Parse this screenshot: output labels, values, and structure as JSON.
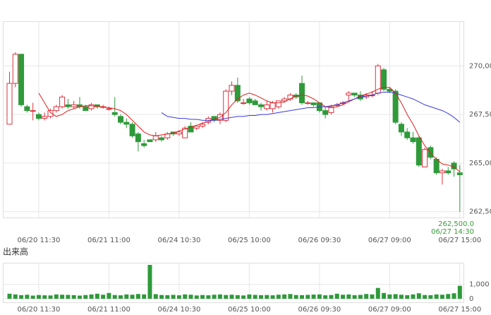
{
  "chart_data": [
    {
      "type": "candlestick",
      "categories": [
        null,
        null,
        null,
        null,
        null,
        "06/20 11:30",
        null,
        null,
        null,
        null,
        null,
        null,
        null,
        null,
        null,
        null,
        null,
        "06/21 11:00",
        null,
        null,
        null,
        null,
        null,
        null,
        null,
        null,
        null,
        null,
        null,
        "06/24 10:30",
        null,
        null,
        null,
        null,
        null,
        null,
        null,
        null,
        null,
        null,
        null,
        "06/25 10:00",
        null,
        null,
        null,
        null,
        null,
        null,
        null,
        null,
        null,
        null,
        null,
        "06/26 09:30",
        null,
        null,
        null,
        null,
        null,
        null,
        null,
        null,
        null,
        null,
        null,
        "06/27 09:00",
        null,
        null,
        null,
        null,
        null,
        null,
        null,
        null,
        null,
        null,
        null,
        "06/27 15:00"
      ],
      "open": [
        267.0,
        269.1,
        270.6,
        267.9,
        267.7,
        267.5,
        267.3,
        267.4,
        267.7,
        267.9,
        268.0,
        267.9,
        268.0,
        267.9,
        267.8,
        268.0,
        267.9,
        267.8,
        267.6,
        267.4,
        267.1,
        267.0,
        266.5,
        266.0,
        266.2,
        266.2,
        266.3,
        266.3,
        266.6,
        266.5,
        266.3,
        266.9,
        266.8,
        266.9,
        267.1,
        267.4,
        267.2,
        267.2,
        268.7,
        269.0,
        268.1,
        268.3,
        268.2,
        268.0,
        267.8,
        267.8,
        267.9,
        268.2,
        268.3,
        268.5,
        269.1,
        268.1,
        268.1,
        268.1,
        267.7,
        267.6,
        268.0,
        268.1,
        268.5,
        268.6,
        268.5,
        268.4,
        268.5,
        268.6,
        269.8,
        268.8,
        268.7,
        267.0,
        266.6,
        266.3,
        266.3,
        264.8,
        265.8,
        265.2,
        264.5,
        264.6,
        265.0,
        264.5
      ],
      "high": [
        269.7,
        270.7,
        270.6,
        268.0,
        268.1,
        267.6,
        267.6,
        267.8,
        268.0,
        268.5,
        268.3,
        268.2,
        268.4,
        268.0,
        268.1,
        268.0,
        268.0,
        267.9,
        268.4,
        267.5,
        267.3,
        267.1,
        266.6,
        266.2,
        266.2,
        266.6,
        266.4,
        266.6,
        266.6,
        266.7,
        266.9,
        267.1,
        266.9,
        267.1,
        267.4,
        267.4,
        267.6,
        268.8,
        269.2,
        269.4,
        268.3,
        268.4,
        268.3,
        268.1,
        268.2,
        268.2,
        268.2,
        268.4,
        268.6,
        268.6,
        269.5,
        268.2,
        268.1,
        268.1,
        267.9,
        268.0,
        268.1,
        268.2,
        268.7,
        268.6,
        268.7,
        268.6,
        268.7,
        270.1,
        269.9,
        268.9,
        268.8,
        267.1,
        266.8,
        266.6,
        266.4,
        265.8,
        265.9,
        265.3,
        264.7,
        264.8,
        265.1,
        264.9
      ],
      "low": [
        267.0,
        268.9,
        267.9,
        267.6,
        267.2,
        267.2,
        267.2,
        267.3,
        267.6,
        267.8,
        267.8,
        267.8,
        267.8,
        267.7,
        267.7,
        267.8,
        267.8,
        267.7,
        267.4,
        267.0,
        266.8,
        266.3,
        265.6,
        265.8,
        266.1,
        266.1,
        266.1,
        266.2,
        266.4,
        266.4,
        266.3,
        266.6,
        266.7,
        266.8,
        267.0,
        267.1,
        267.0,
        267.1,
        268.5,
        268.1,
        268.0,
        268.0,
        268.0,
        267.7,
        267.7,
        267.6,
        267.8,
        268.1,
        268.2,
        268.3,
        268.0,
        268.0,
        267.9,
        267.6,
        267.3,
        267.5,
        267.9,
        268.0,
        268.2,
        268.4,
        268.2,
        268.3,
        268.4,
        268.5,
        268.7,
        268.6,
        267.0,
        266.4,
        266.2,
        266.0,
        264.8,
        264.8,
        265.2,
        264.4,
        263.9,
        264.4,
        264.3,
        262.5
      ],
      "close": [
        269.1,
        270.6,
        268.0,
        267.7,
        267.7,
        267.3,
        267.4,
        267.7,
        267.9,
        268.4,
        267.9,
        268.0,
        267.9,
        267.7,
        268.0,
        267.9,
        267.9,
        267.8,
        267.5,
        267.1,
        267.0,
        266.4,
        266.1,
        265.9,
        266.1,
        266.4,
        266.2,
        266.5,
        266.5,
        266.6,
        266.8,
        266.6,
        266.9,
        267.0,
        267.3,
        267.2,
        267.5,
        268.7,
        269.0,
        268.2,
        268.1,
        268.1,
        268.0,
        267.9,
        268.0,
        268.1,
        268.2,
        268.3,
        268.5,
        268.4,
        268.1,
        268.1,
        268.0,
        267.7,
        267.5,
        267.9,
        268.0,
        268.1,
        268.6,
        268.5,
        268.3,
        268.5,
        268.5,
        270.0,
        268.8,
        268.7,
        267.1,
        266.6,
        266.3,
        266.1,
        264.9,
        265.7,
        265.3,
        264.5,
        264.6,
        264.5,
        264.7,
        264.4
      ],
      "up_color": "#d9333f",
      "down_color": "#2e9a3a",
      "moving_averages": [
        {
          "color": "#e02020",
          "values": [
            null,
            null,
            null,
            null,
            null,
            268.6,
            268.1,
            267.6,
            267.4,
            267.5,
            267.7,
            267.8,
            267.9,
            267.95,
            267.95,
            267.9,
            267.9,
            267.85,
            267.8,
            267.7,
            267.5,
            267.2,
            266.9,
            266.6,
            266.45,
            266.4,
            266.45,
            266.5,
            266.55,
            266.65,
            266.75,
            266.85,
            266.95,
            267.05,
            267.15,
            267.25,
            267.35,
            267.6,
            268.0,
            268.3,
            268.5,
            268.6,
            268.5,
            268.35,
            268.2,
            268.1,
            268.1,
            268.15,
            268.3,
            268.45,
            268.5,
            268.45,
            268.3,
            268.1,
            267.9,
            267.85,
            267.9,
            268.0,
            268.15,
            268.3,
            268.45,
            268.55,
            268.65,
            268.8,
            268.9,
            268.9,
            268.6,
            268.1,
            267.5,
            267.0,
            266.4,
            265.9,
            265.5,
            265.2,
            264.95,
            264.9,
            264.8,
            264.55
          ]
        },
        {
          "color": "#3a3adf",
          "values": [
            null,
            null,
            null,
            null,
            null,
            null,
            null,
            null,
            null,
            null,
            null,
            null,
            null,
            null,
            null,
            null,
            null,
            null,
            null,
            null,
            null,
            null,
            null,
            null,
            null,
            null,
            267.6,
            267.4,
            267.35,
            267.3,
            267.3,
            267.25,
            267.25,
            267.2,
            267.2,
            267.2,
            267.25,
            267.3,
            267.35,
            267.4,
            267.4,
            267.45,
            267.45,
            267.5,
            267.5,
            267.55,
            267.6,
            267.65,
            267.7,
            267.75,
            267.8,
            267.85,
            267.85,
            267.9,
            267.9,
            267.95,
            268.0,
            268.1,
            268.2,
            268.3,
            268.4,
            268.45,
            268.5,
            268.6,
            268.65,
            268.65,
            268.6,
            268.5,
            268.4,
            268.3,
            268.15,
            268.0,
            267.9,
            267.8,
            267.7,
            267.55,
            267.35,
            267.1
          ]
        }
      ],
      "ylim": [
        262.2,
        272.3
      ],
      "yticks": [
        {
          "value": 262.5,
          "label": "262,50"
        },
        {
          "value": 265,
          "label": "265,00"
        },
        {
          "value": 267.5,
          "label": "267,50"
        },
        {
          "value": 270,
          "label": "270,00"
        }
      ],
      "grid": true,
      "annotations": [
        "262,500.0",
        "06/27 14:30"
      ]
    },
    {
      "type": "bar",
      "title": "出来高",
      "categories": [
        null,
        null,
        null,
        null,
        null,
        "06/20 11:30",
        null,
        null,
        null,
        null,
        null,
        null,
        null,
        null,
        null,
        null,
        null,
        "06/21 11:00",
        null,
        null,
        null,
        null,
        null,
        null,
        null,
        null,
        null,
        null,
        null,
        "06/24 10:30",
        null,
        null,
        null,
        null,
        null,
        null,
        null,
        null,
        null,
        null,
        null,
        "06/25 10:00",
        null,
        null,
        null,
        null,
        null,
        null,
        null,
        null,
        null,
        null,
        null,
        "06/26 09:30",
        null,
        null,
        null,
        null,
        null,
        null,
        null,
        null,
        null,
        null,
        null,
        "06/27 09:00",
        null,
        null,
        null,
        null,
        null,
        null,
        null,
        null,
        null,
        null,
        null,
        "06/27 15:00"
      ],
      "values": [
        350,
        300,
        250,
        280,
        220,
        260,
        240,
        230,
        300,
        280,
        270,
        250,
        220,
        260,
        300,
        350,
        280,
        400,
        260,
        240,
        300,
        280,
        330,
        300,
        2350,
        320,
        260,
        250,
        270,
        240,
        300,
        280,
        230,
        260,
        240,
        280,
        300,
        260,
        280,
        250,
        230,
        300,
        270,
        250,
        260,
        240,
        280,
        300,
        330,
        260,
        250,
        270,
        290,
        300,
        240,
        260,
        350,
        280,
        300,
        250,
        270,
        330,
        300,
        750,
        400,
        300,
        320,
        280,
        250,
        300,
        380,
        260,
        250,
        300,
        280,
        330,
        380,
        900
      ],
      "color": "#2e9a3a",
      "ylim": [
        0,
        2500
      ],
      "yticks": [
        0,
        {
          "value": 1000,
          "label": "1,000"
        }
      ],
      "grid": true
    }
  ]
}
